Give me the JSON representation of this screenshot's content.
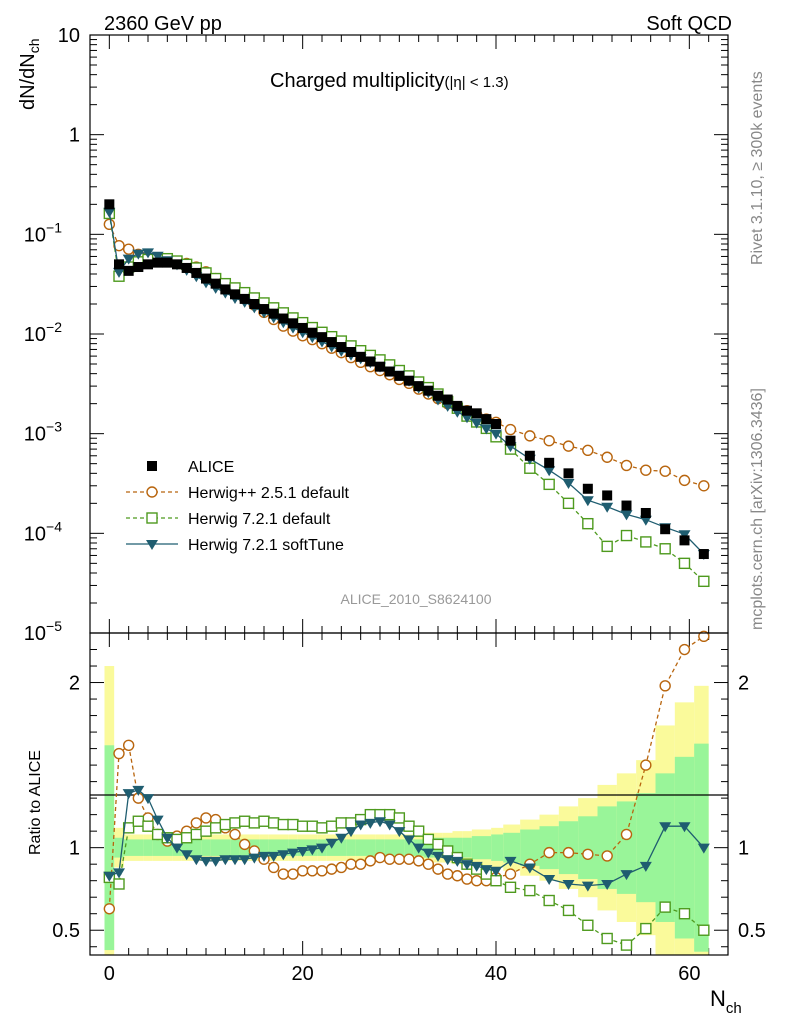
{
  "header": {
    "left": "2360 GeV pp",
    "right": "Soft QCD"
  },
  "side_labels": {
    "rivet": "Rivet 3.1.10, ≥ 300k events",
    "mcplots": "mcplots.cern.ch [arXiv:1306.3436]"
  },
  "watermark": "ALICE_2010_S8624100",
  "colors": {
    "alice": "#000000",
    "herwig_pp": "#b8650e",
    "herwig_default": "#4e9a1e",
    "herwig_softtune": "#1f5d70",
    "band_inner": "#99f599",
    "band_outer": "#fafa9b"
  },
  "chart_data": [
    {
      "type": "scatter",
      "title": "Charged multiplicity",
      "title_suffix": "(|η| < 1.3)",
      "xlabel": "N",
      "xlabel_sub": "ch",
      "ylabel": "dN/dN",
      "ylabel_sub": "ch",
      "yscale": "log",
      "xlim": [
        -2,
        64
      ],
      "ylim": [
        1e-05,
        10
      ],
      "yticks": [
        {
          "v": 10,
          "base": "10",
          "exp": ""
        },
        {
          "v": 1,
          "base": "1",
          "exp": ""
        },
        {
          "v": 0.1,
          "base": "10",
          "exp": "−1"
        },
        {
          "v": 0.01,
          "base": "10",
          "exp": "−2"
        },
        {
          "v": 0.001,
          "base": "10",
          "exp": "−3"
        },
        {
          "v": 0.0001,
          "base": "10",
          "exp": "−4"
        },
        {
          "v": 1e-05,
          "base": "10",
          "exp": "−5"
        }
      ],
      "legend_position": "bottom-left",
      "legend": [
        "ALICE",
        "Herwig++ 2.5.1 default",
        "Herwig 7.2.1 default",
        "Herwig 7.2.1 softTune"
      ],
      "x": [
        0,
        1,
        2,
        3,
        4,
        5,
        6,
        7,
        8,
        9,
        10,
        11,
        12,
        13,
        14,
        15,
        16,
        17,
        18,
        19,
        20,
        21,
        22,
        23,
        24,
        25,
        26,
        27,
        28,
        29,
        30,
        31,
        32,
        33,
        34,
        35,
        36,
        37,
        38,
        39,
        40,
        41.5,
        43.5,
        45.5,
        47.5,
        49.5,
        51.5,
        53.5,
        55.5,
        57.5,
        59.5,
        61.5
      ],
      "series": [
        {
          "name": "ALICE",
          "values": [
            0.2,
            0.05,
            0.043,
            0.047,
            0.05,
            0.052,
            0.052,
            0.05,
            0.046,
            0.041,
            0.036,
            0.032,
            0.028,
            0.025,
            0.0225,
            0.02,
            0.0178,
            0.016,
            0.0143,
            0.0128,
            0.0115,
            0.0103,
            0.0093,
            0.0083,
            0.0074,
            0.0066,
            0.0059,
            0.0053,
            0.0047,
            0.0042,
            0.0038,
            0.0034,
            0.003,
            0.0027,
            0.0024,
            0.0022,
            0.0019,
            0.0017,
            0.0016,
            0.0014,
            0.00125,
            0.00085,
            0.0006,
            0.00051,
            0.0004,
            0.00028,
            0.00024,
            0.00019,
            0.00016,
            0.00011,
            8.5e-05,
            6.2e-05
          ]
        },
        {
          "name": "Herwig++ 2.5.1 default",
          "values": [
            0.126,
            0.077,
            0.071,
            0.063,
            0.058,
            0.055,
            0.053,
            0.053,
            0.051,
            0.047,
            0.042,
            0.036,
            0.031,
            0.027,
            0.0225,
            0.0195,
            0.0165,
            0.014,
            0.012,
            0.0107,
            0.0096,
            0.0088,
            0.008,
            0.0072,
            0.0065,
            0.0058,
            0.0052,
            0.0047,
            0.0043,
            0.0039,
            0.0035,
            0.0032,
            0.0028,
            0.0025,
            0.00225,
            0.002,
            0.00185,
            0.0017,
            0.00155,
            0.0014,
            0.0013,
            0.0011,
            0.00095,
            0.00085,
            0.00075,
            0.00068,
            0.00058,
            0.00048,
            0.00043,
            0.00042,
            0.00034,
            0.0003
          ]
        },
        {
          "name": "Herwig 7.2.1 default",
          "values": [
            0.162,
            0.038,
            0.047,
            0.053,
            0.056,
            0.057,
            0.057,
            0.054,
            0.05,
            0.046,
            0.041,
            0.036,
            0.032,
            0.029,
            0.026,
            0.023,
            0.0205,
            0.0183,
            0.0163,
            0.0145,
            0.013,
            0.0116,
            0.0104,
            0.0094,
            0.0085,
            0.0076,
            0.0068,
            0.0061,
            0.0055,
            0.0049,
            0.0043,
            0.0038,
            0.0033,
            0.0029,
            0.0025,
            0.0021,
            0.0018,
            0.0015,
            0.00131,
            0.00113,
            0.00093,
            0.0007,
            0.00045,
            0.00031,
            0.0002,
            0.000125,
            7.4e-05,
            9.5e-05,
            8.2e-05,
            7e-05,
            5e-05,
            3.3e-05
          ]
        },
        {
          "name": "Herwig 7.2.1 softTune",
          "values": [
            0.168,
            0.042,
            0.057,
            0.064,
            0.066,
            0.061,
            0.055,
            0.05,
            0.044,
            0.038,
            0.033,
            0.029,
            0.026,
            0.023,
            0.021,
            0.0185,
            0.0165,
            0.0147,
            0.0131,
            0.0116,
            0.0104,
            0.0093,
            0.0084,
            0.0075,
            0.0068,
            0.0062,
            0.0057,
            0.0052,
            0.0047,
            0.0043,
            0.0039,
            0.0034,
            0.0029,
            0.0026,
            0.0022,
            0.0019,
            0.00166,
            0.00146,
            0.00129,
            0.00113,
            0.001,
            0.00075,
            0.00056,
            0.00043,
            0.00032,
            0.000215,
            0.000185,
            0.000155,
            0.000137,
            0.000115,
            9.8e-05,
            6.2e-05
          ]
        }
      ]
    },
    {
      "type": "scatter",
      "ylabel": "Ratio to ALICE",
      "xlabel": "N",
      "xlabel_sub": "ch",
      "xlim": [
        -2,
        64
      ],
      "ylim": [
        0.35,
        2.3
      ],
      "xticks": [
        0,
        20,
        40,
        60
      ],
      "yticks": [
        0.5,
        1,
        2
      ],
      "x": [
        0,
        1,
        2,
        3,
        4,
        5,
        6,
        7,
        8,
        9,
        10,
        11,
        12,
        13,
        14,
        15,
        16,
        17,
        18,
        19,
        20,
        21,
        22,
        23,
        24,
        25,
        26,
        27,
        28,
        29,
        30,
        31,
        32,
        33,
        34,
        35,
        36,
        37,
        38,
        39,
        40,
        41.5,
        43.5,
        45.5,
        47.5,
        49.5,
        51.5,
        53.5,
        55.5,
        57.5,
        59.5,
        61.5
      ],
      "band_inner_halfwidth": [
        0.62,
        0.06,
        0.05,
        0.05,
        0.05,
        0.05,
        0.05,
        0.05,
        0.05,
        0.05,
        0.05,
        0.05,
        0.05,
        0.05,
        0.05,
        0.05,
        0.05,
        0.05,
        0.05,
        0.05,
        0.05,
        0.05,
        0.05,
        0.05,
        0.05,
        0.05,
        0.05,
        0.05,
        0.05,
        0.05,
        0.05,
        0.05,
        0.05,
        0.06,
        0.06,
        0.06,
        0.06,
        0.06,
        0.07,
        0.07,
        0.08,
        0.09,
        0.11,
        0.13,
        0.16,
        0.19,
        0.25,
        0.28,
        0.33,
        0.45,
        0.55,
        0.63
      ],
      "band_outer_halfwidth": [
        1.1,
        0.12,
        0.08,
        0.08,
        0.08,
        0.08,
        0.08,
        0.08,
        0.08,
        0.08,
        0.08,
        0.08,
        0.08,
        0.08,
        0.08,
        0.08,
        0.08,
        0.08,
        0.08,
        0.08,
        0.08,
        0.08,
        0.08,
        0.08,
        0.08,
        0.08,
        0.08,
        0.08,
        0.08,
        0.08,
        0.08,
        0.08,
        0.09,
        0.09,
        0.09,
        0.09,
        0.1,
        0.1,
        0.11,
        0.11,
        0.12,
        0.14,
        0.17,
        0.2,
        0.25,
        0.3,
        0.38,
        0.45,
        0.53,
        0.74,
        0.88,
        0.98
      ],
      "series": [
        {
          "name": "Herwig++ 2.5.1 default",
          "values": [
            0.63,
            1.57,
            1.62,
            1.3,
            1.18,
            1.08,
            1.04,
            1.07,
            1.1,
            1.15,
            1.18,
            1.17,
            1.12,
            1.08,
            1.02,
            0.98,
            0.93,
            0.88,
            0.84,
            0.84,
            0.86,
            0.86,
            0.86,
            0.87,
            0.88,
            0.9,
            0.9,
            0.92,
            0.94,
            0.93,
            0.93,
            0.93,
            0.92,
            0.9,
            0.87,
            0.84,
            0.83,
            0.81,
            0.8,
            0.8,
            0.82,
            0.84,
            0.9,
            0.97,
            0.97,
            0.96,
            0.95,
            1.08,
            1.5,
            1.98,
            2.2,
            2.28
          ]
        },
        {
          "name": "Herwig 7.2.1 default",
          "values": [
            0.82,
            0.78,
            1.12,
            1.16,
            1.13,
            1.08,
            1.06,
            1.05,
            1.06,
            1.08,
            1.1,
            1.12,
            1.14,
            1.15,
            1.16,
            1.15,
            1.16,
            1.15,
            1.14,
            1.14,
            1.13,
            1.13,
            1.12,
            1.13,
            1.15,
            1.15,
            1.17,
            1.2,
            1.2,
            1.2,
            1.18,
            1.13,
            1.1,
            1.05,
            1.02,
            0.98,
            0.94,
            0.9,
            0.87,
            0.84,
            0.8,
            0.76,
            0.74,
            0.68,
            0.62,
            0.53,
            0.45,
            0.41,
            0.51,
            0.64,
            0.6,
            0.5
          ]
        },
        {
          "name": "Herwig 7.2.1 softTune",
          "values": [
            0.83,
            0.85,
            1.33,
            1.35,
            1.3,
            1.17,
            1.06,
            1.0,
            0.96,
            0.93,
            0.92,
            0.92,
            0.93,
            0.93,
            0.93,
            0.94,
            0.95,
            0.95,
            0.96,
            0.97,
            0.98,
            0.99,
            1.0,
            1.03,
            1.06,
            1.1,
            1.14,
            1.15,
            1.16,
            1.14,
            1.1,
            1.05,
            1.0,
            0.97,
            0.95,
            0.93,
            0.92,
            0.9,
            0.89,
            0.87,
            0.86,
            0.92,
            0.88,
            0.81,
            0.78,
            0.77,
            0.78,
            0.84,
            0.89,
            1.13,
            1.13,
            1.0
          ]
        }
      ]
    }
  ]
}
